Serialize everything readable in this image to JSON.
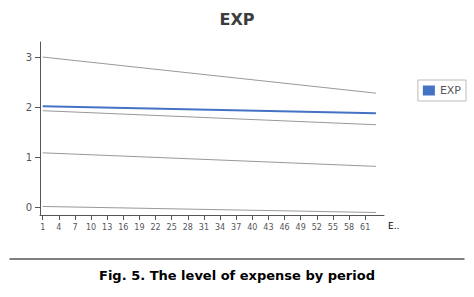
{
  "chart_data": {
    "type": "line",
    "title": "EXP",
    "x": [
      1,
      63
    ],
    "series": [
      {
        "color": "#999999",
        "values": [
          3.0,
          2.28
        ]
      },
      {
        "color": "#999999",
        "values": [
          1.93,
          1.65
        ]
      },
      {
        "color": "#999999",
        "values": [
          1.09,
          0.82
        ]
      },
      {
        "color": "#999999",
        "values": [
          0.02,
          -0.1
        ]
      },
      {
        "name": "EXP",
        "color": "#4472C4",
        "values": [
          2.02,
          1.88
        ]
      }
    ],
    "xlim": [
      0.5,
      64.5
    ],
    "xticks": [
      1,
      4,
      7,
      10,
      13,
      16,
      19,
      22,
      25,
      28,
      31,
      34,
      37,
      40,
      43,
      46,
      49,
      52,
      55,
      58,
      61
    ],
    "ylim": [
      -0.15,
      3.3
    ],
    "yticks": [
      0,
      1,
      2,
      3
    ],
    "annotations": [
      "E.."
    ],
    "caption": "Fig. 5. The level of expense by period",
    "legend": "right",
    "grid": false
  }
}
